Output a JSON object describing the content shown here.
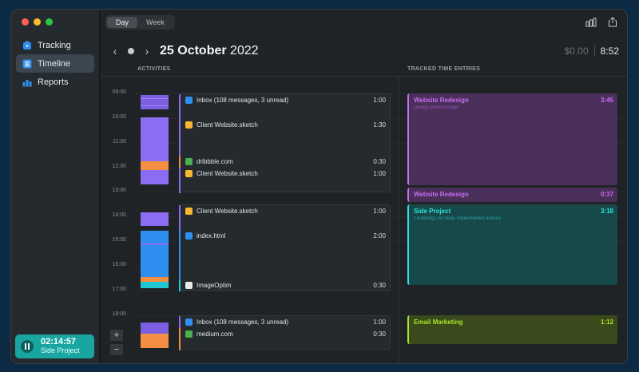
{
  "window": {
    "traffic_colors": [
      "#ff5f57",
      "#febc2e",
      "#28c840"
    ]
  },
  "sidebar": {
    "items": [
      {
        "label": "Tracking",
        "icon": "tracking-icon"
      },
      {
        "label": "Timeline",
        "icon": "timeline-icon",
        "active": true
      },
      {
        "label": "Reports",
        "icon": "reports-icon"
      }
    ],
    "timer": {
      "time": "02:14:57",
      "project": "Side Project"
    }
  },
  "toolbar": {
    "tabs": [
      {
        "label": "Day",
        "active": true
      },
      {
        "label": "Week",
        "active": false
      }
    ],
    "icons": [
      "bar-chart-icon",
      "share-icon"
    ]
  },
  "header": {
    "date_day_month": "25 October",
    "date_year": "2022",
    "money": "$0.00",
    "total": "8:52"
  },
  "columns": {
    "activities": "ACTIVITIES",
    "tracked": "TRACKED TIME ENTRIES"
  },
  "hours": [
    "09:00",
    "10:00",
    "11:00",
    "12:00",
    "13:00",
    "14:00",
    "15:00",
    "16:00",
    "17:00",
    "18:00"
  ],
  "activities": [
    {
      "name": "Inbox (108 messages, 3 unread)",
      "duration": "1:00",
      "app": "mail-icon",
      "color": "#8b6cf2"
    },
    {
      "name": "Client Website.sketch",
      "duration": "1:30",
      "app": "sketch-icon",
      "color": "#8b6cf2"
    },
    {
      "name": "dribbble.com",
      "duration": "0:30",
      "app": "chrome-icon",
      "color": "#f48e42"
    },
    {
      "name": "Client Website.sketch",
      "duration": "1:00",
      "app": "sketch-icon",
      "color": "#8b6cf2"
    },
    {
      "name": "Client Website.sketch",
      "duration": "1:00",
      "app": "sketch-icon",
      "color": "#8b6cf2"
    },
    {
      "name": "index.html",
      "duration": "2:00",
      "app": "vscode-icon",
      "color": "#2f8ff0"
    },
    {
      "name": "ImageOptim",
      "duration": "0:30",
      "app": "imageoptim-icon",
      "color": "#1ec7d1"
    },
    {
      "name": "Inbox (108 messages, 3 unread)",
      "duration": "1:00",
      "app": "mail-icon",
      "color": "#8b6cf2"
    },
    {
      "name": "medium.com",
      "duration": "0:30",
      "app": "chrome-icon",
      "color": "#f48e42"
    }
  ],
  "entries": [
    {
      "title": "Website Redesign",
      "duration": "3:45",
      "note": "Design product page",
      "color": "#c66ef2",
      "bg": "#4a2f5a"
    },
    {
      "title": "Website Redesign",
      "duration": "0:37",
      "note": "",
      "color": "#c66ef2",
      "bg": "#4a2f5a"
    },
    {
      "title": "Side Project",
      "duration": "3:18",
      "note": "Finalizing List View, Implemented actions",
      "color": "#2de3dd",
      "bg": "#17484a"
    },
    {
      "title": "Email Marketing",
      "duration": "1:12",
      "note": "",
      "color": "#a8e82b",
      "bg": "#3b4a1c"
    }
  ],
  "zoom": {
    "plus": "+",
    "minus": "−"
  }
}
